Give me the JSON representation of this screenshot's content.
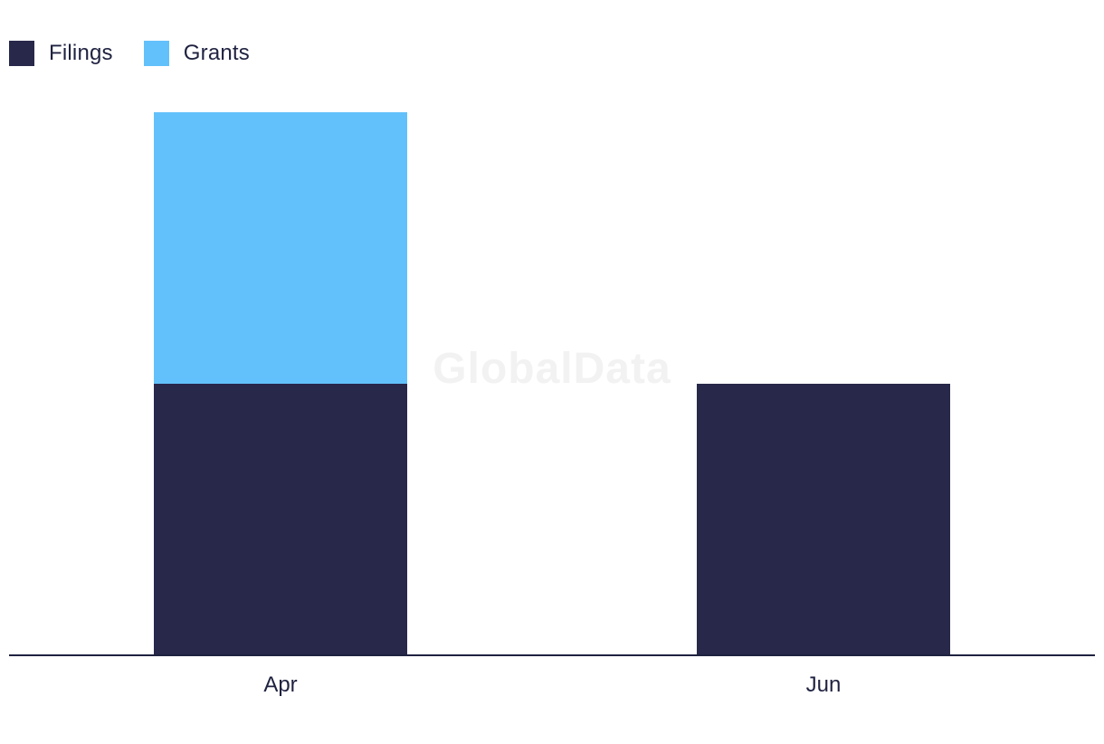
{
  "watermark": "GlobalData",
  "colors": {
    "filings": "#27284a",
    "grants": "#62c1fa",
    "axis": "#1f2240"
  },
  "legend": [
    {
      "name": "Filings",
      "color": "#27284a"
    },
    {
      "name": "Grants",
      "color": "#62c1fa"
    }
  ],
  "chart_data": {
    "type": "bar",
    "stacked": true,
    "categories": [
      "Apr",
      "Jun"
    ],
    "series": [
      {
        "name": "Filings",
        "values": [
          1,
          1
        ]
      },
      {
        "name": "Grants",
        "values": [
          1,
          0
        ]
      }
    ],
    "ylim": [
      0,
      2
    ],
    "grid": false,
    "legend_position": "top-left"
  }
}
